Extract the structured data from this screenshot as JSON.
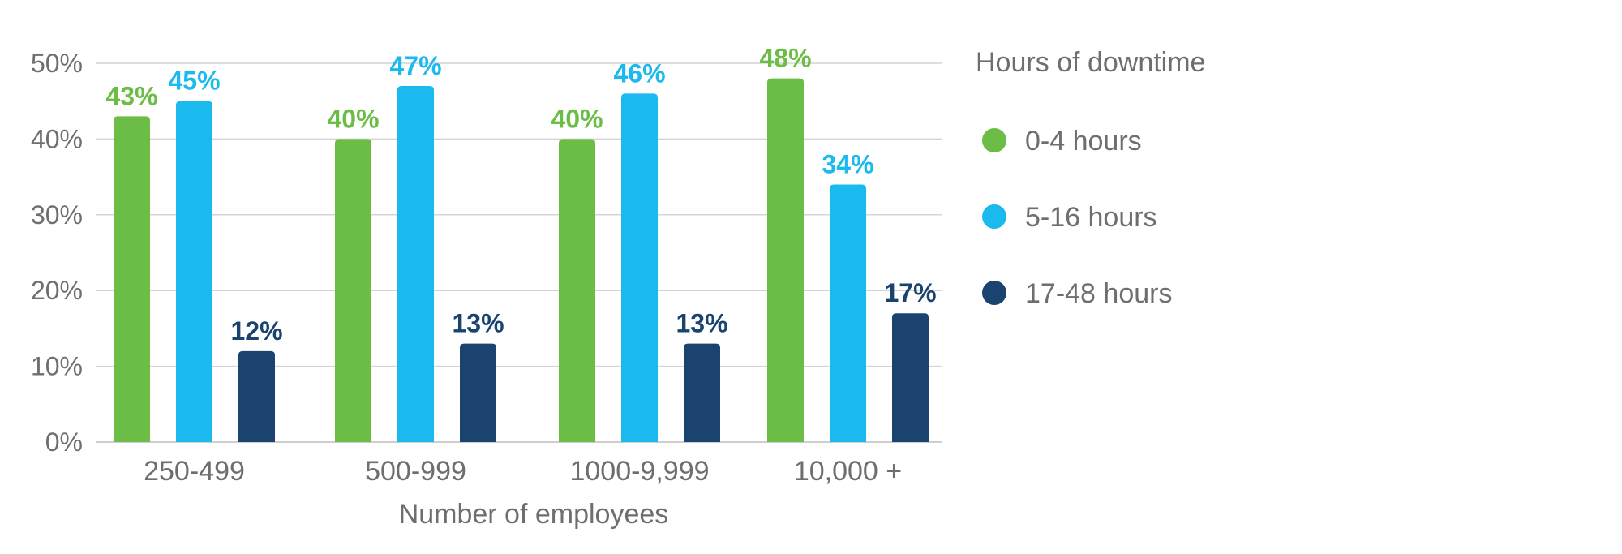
{
  "chart_data": {
    "type": "bar",
    "categories": [
      "250-499",
      "500-999",
      "1000-9,999",
      "10,000 +"
    ],
    "series": [
      {
        "name": "0-4 hours",
        "color": "#6cbd45",
        "values": [
          43,
          40,
          40,
          48
        ],
        "labels": [
          "43%",
          "40%",
          "40%",
          "48%"
        ]
      },
      {
        "name": "5-16 hours",
        "color": "#1ab9ee",
        "values": [
          45,
          47,
          46,
          34
        ],
        "labels": [
          "45%",
          "47%",
          "46%",
          "34%"
        ]
      },
      {
        "name": "17-48 hours",
        "color": "#1b4370",
        "values": [
          12,
          13,
          13,
          17
        ],
        "labels": [
          "12%",
          "13%",
          "13%",
          "17%"
        ]
      }
    ],
    "ylim": [
      0,
      50
    ],
    "yticks": [
      0,
      10,
      20,
      30,
      40,
      50
    ],
    "ytick_labels": [
      "0%",
      "10%",
      "20%",
      "30%",
      "40%",
      "50%"
    ],
    "xlabel": "Number of employees",
    "legend_title": "Hours of downtime",
    "grid": true,
    "legend_position": "right"
  }
}
